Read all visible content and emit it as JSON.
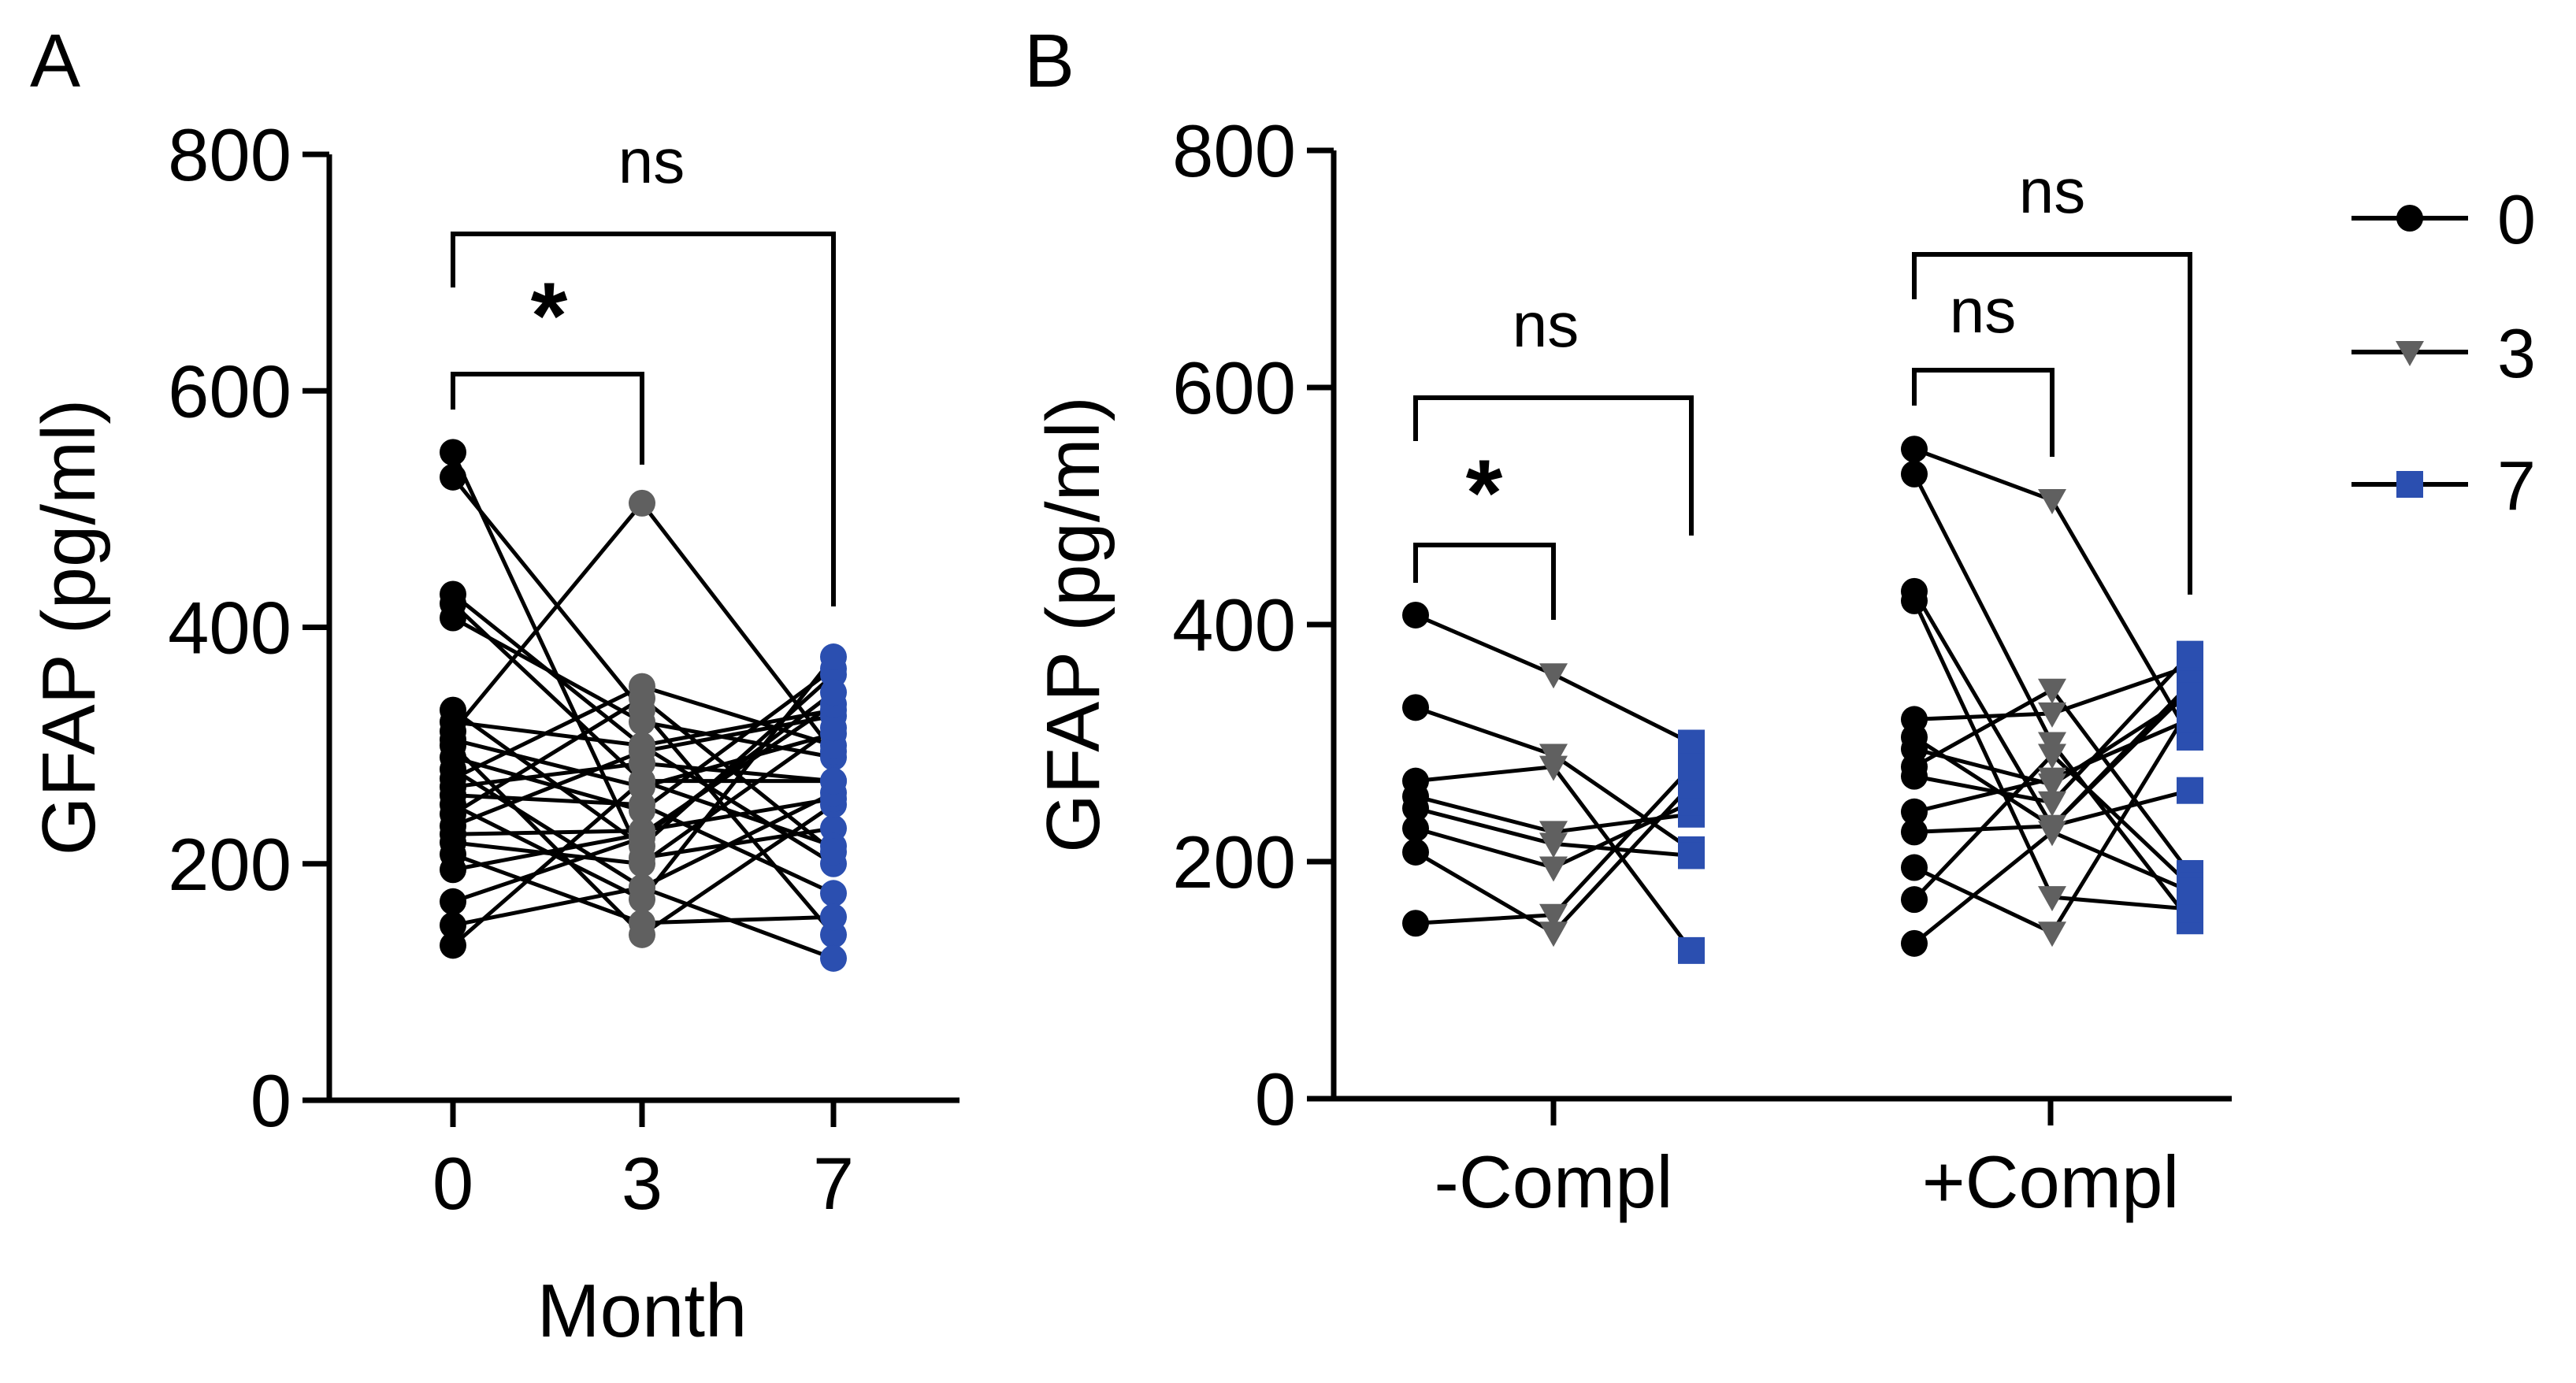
{
  "colors": {
    "m0": "#000000",
    "m3": "#606060",
    "m7": "#2b4fb0"
  },
  "chart_data": [
    {
      "panel": "A",
      "type": "scatter",
      "subtype": "paired before-after",
      "title": "",
      "xlabel": "Month",
      "ylabel": "GFAP (pg/ml)",
      "categories": [
        "0",
        "3",
        "7"
      ],
      "ylim": [
        0,
        800
      ],
      "yticks": [
        "0",
        "200",
        "400",
        "600",
        "800"
      ],
      "pairs": [
        [
          548,
          205,
          230
        ],
        [
          527,
          330,
          140
        ],
        [
          428,
          300,
          200
        ],
        [
          420,
          270,
          215
        ],
        [
          408,
          320,
          290
        ],
        [
          330,
          215,
          360
        ],
        [
          320,
          300,
          330
        ],
        [
          312,
          505,
          295
        ],
        [
          305,
          265,
          310
        ],
        [
          300,
          140,
          250
        ],
        [
          290,
          245,
          365
        ],
        [
          280,
          180,
          120
        ],
        [
          272,
          350,
          300
        ],
        [
          265,
          285,
          270
        ],
        [
          258,
          250,
          175
        ],
        [
          250,
          170,
          375
        ],
        [
          242,
          340,
          210
        ],
        [
          232,
          295,
          325
        ],
        [
          225,
          228,
          255
        ],
        [
          218,
          200,
          315
        ],
        [
          208,
          150,
          155
        ],
        [
          195,
          225,
          335
        ],
        [
          168,
          222,
          345
        ],
        [
          148,
          180,
          260
        ],
        [
          131,
          270,
          270
        ]
      ],
      "significance": [
        {
          "from": "0",
          "to": "3",
          "label": "*"
        },
        {
          "from": "0",
          "to": "7",
          "label": "ns"
        }
      ]
    },
    {
      "panel": "B",
      "type": "scatter",
      "subtype": "grouped paired before-after",
      "xlabel": "",
      "ylabel": "GFAP (pg/ml)",
      "groups": [
        "-Compl",
        "+Compl"
      ],
      "ylim": [
        0,
        800
      ],
      "yticks": [
        "0",
        "200",
        "400",
        "600",
        "800"
      ],
      "legend": {
        "title": "",
        "entries": [
          "0",
          "3",
          "7"
        ],
        "position": "right"
      },
      "group_pairs": [
        [
          [
            408,
            358,
            300
          ],
          [
            330,
            290,
            210
          ],
          [
            268,
            280,
            125
          ],
          [
            255,
            225,
            240
          ],
          [
            245,
            215,
            205
          ],
          [
            228,
            195,
            250
          ],
          [
            208,
            140,
            265
          ],
          [
            148,
            155,
            280
          ]
        ],
        [
          [
            548,
            505,
            305
          ],
          [
            527,
            300,
            150
          ],
          [
            428,
            230,
            345
          ],
          [
            420,
            170,
            160
          ],
          [
            320,
            325,
            365
          ],
          [
            305,
            230,
            350
          ],
          [
            295,
            265,
            340
          ],
          [
            280,
            345,
            190
          ],
          [
            272,
            250,
            375
          ],
          [
            242,
            270,
            320
          ],
          [
            225,
            230,
            260
          ],
          [
            195,
            140,
            330
          ],
          [
            168,
            290,
            180
          ],
          [
            131,
            225,
            175
          ]
        ]
      ],
      "significance": [
        {
          "group": "-Compl",
          "from": "0",
          "to": "3",
          "label": "*"
        },
        {
          "group": "-Compl",
          "from": "0",
          "to": "7",
          "label": "ns"
        },
        {
          "group": "+Compl",
          "from": "0",
          "to": "3",
          "label": "ns"
        },
        {
          "group": "+Compl",
          "from": "0",
          "to": "7",
          "label": "ns"
        }
      ]
    }
  ]
}
